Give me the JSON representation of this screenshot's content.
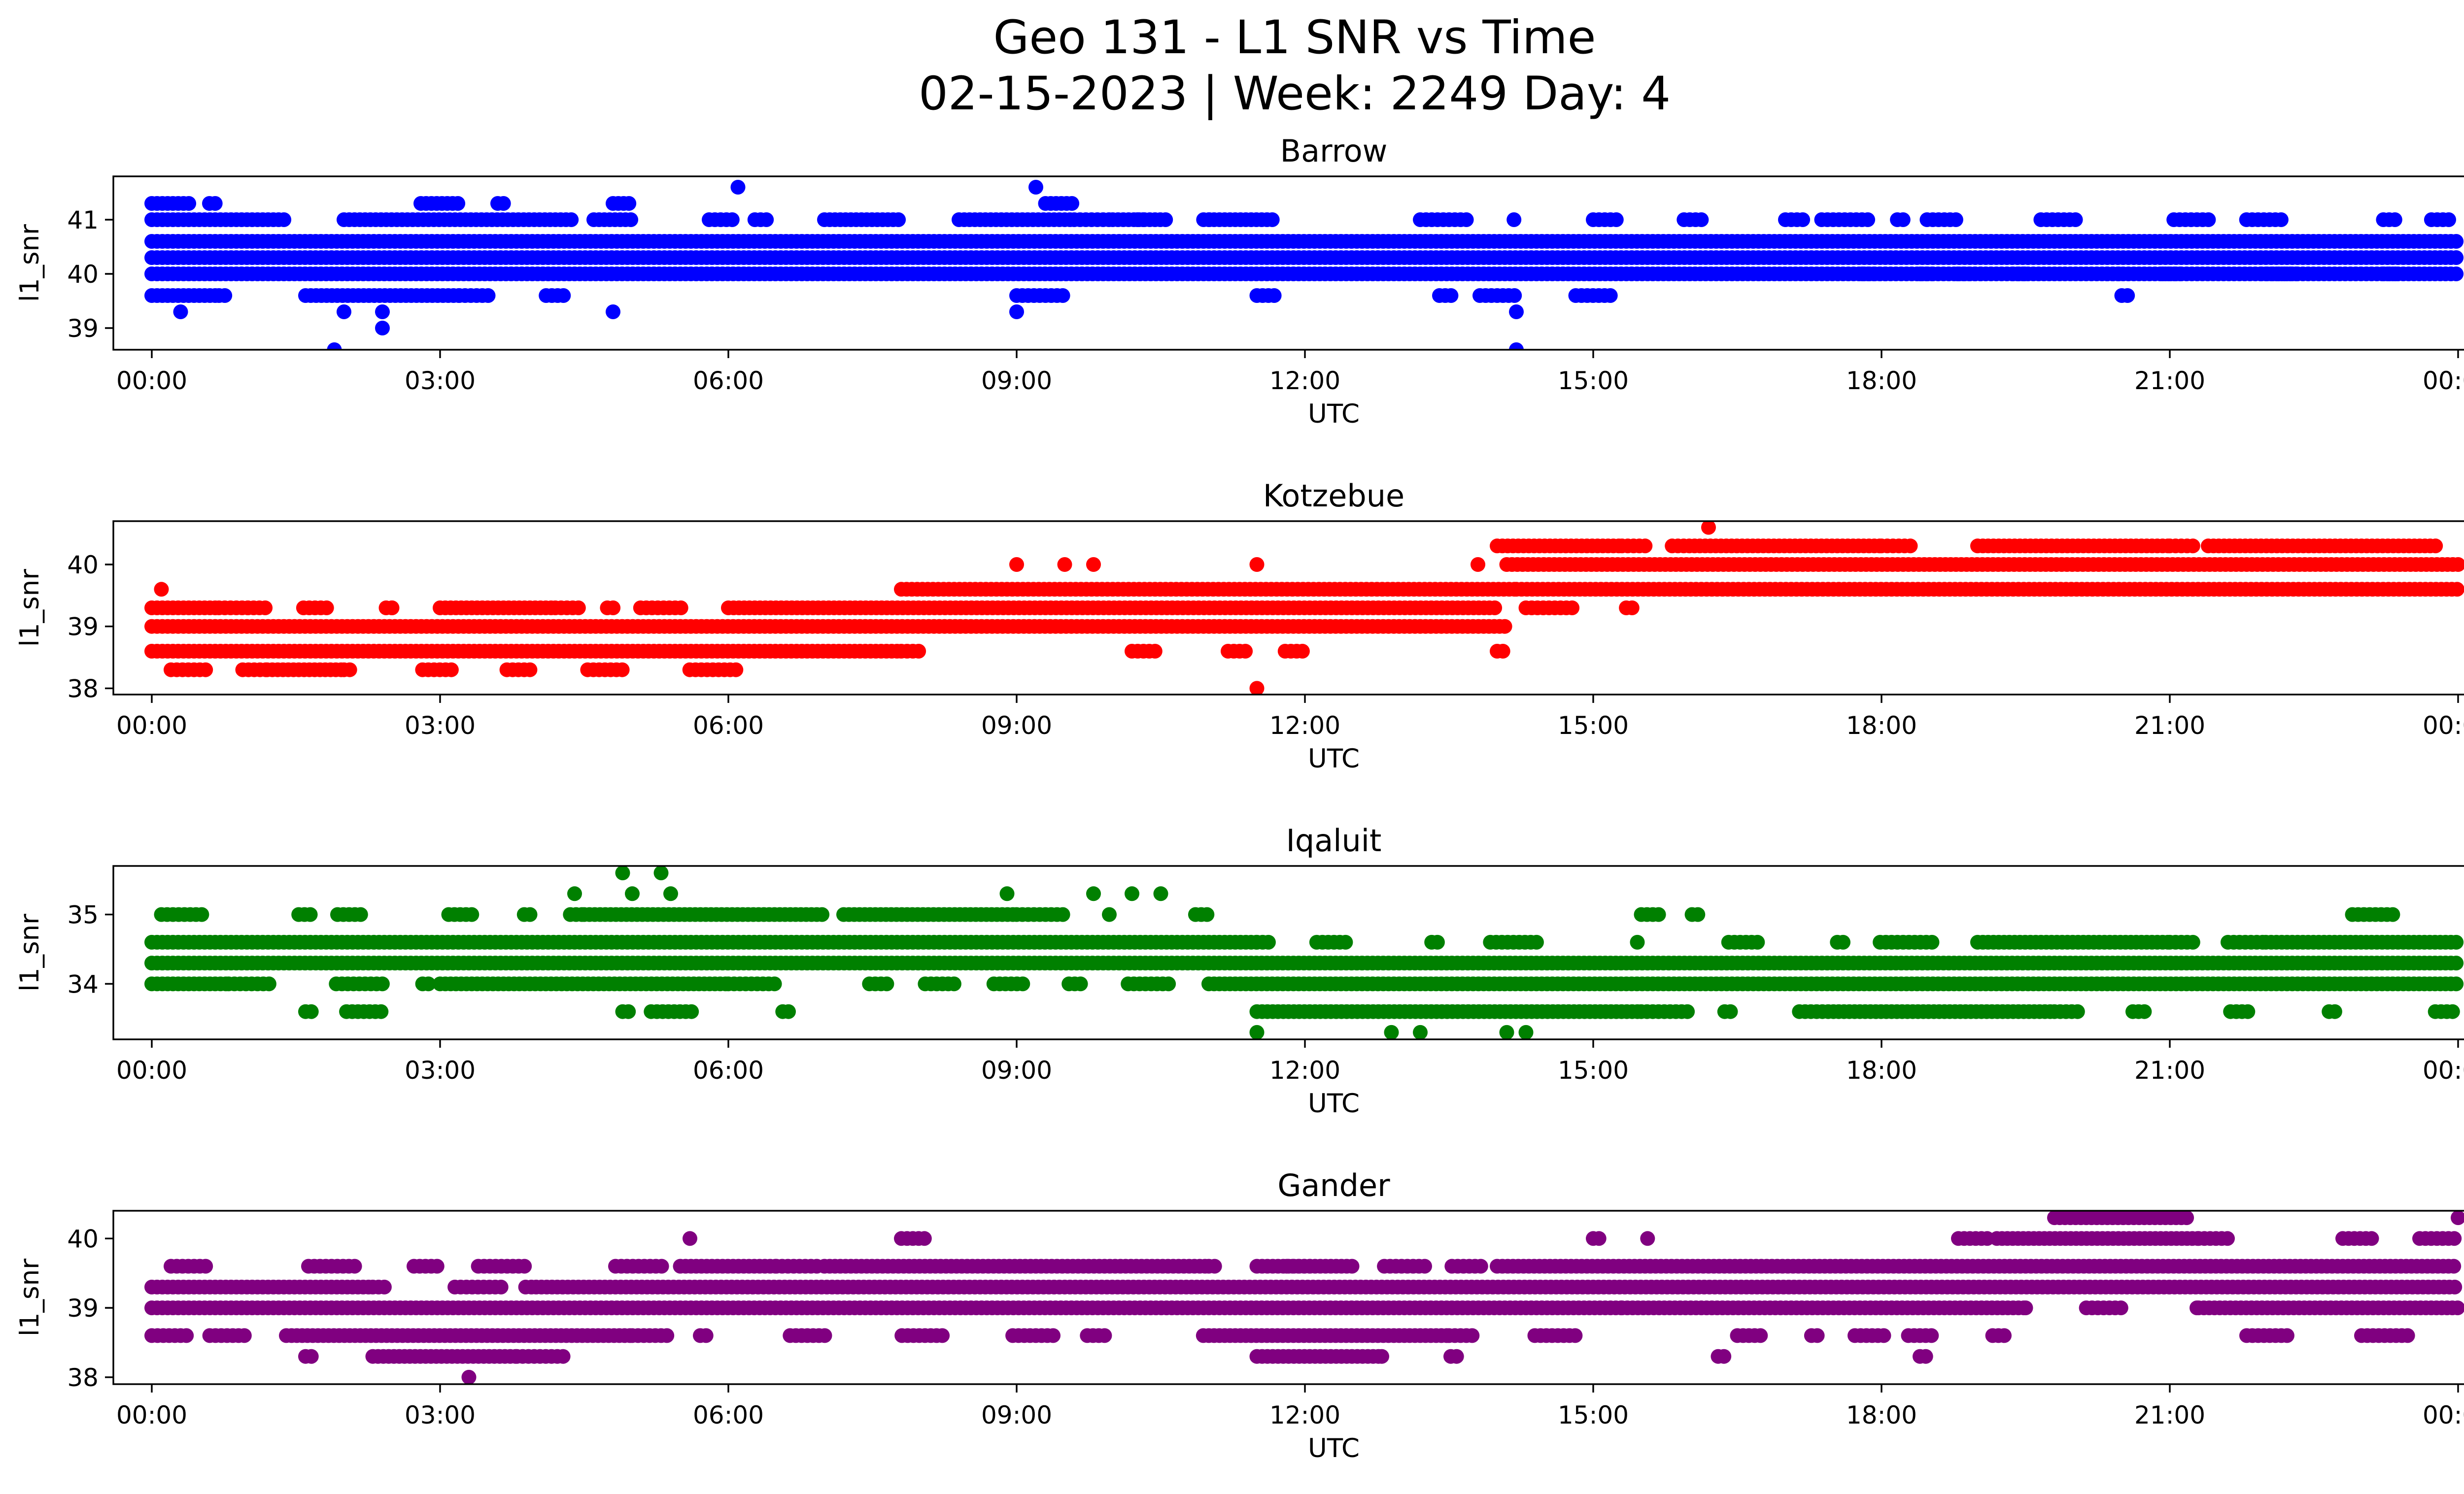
{
  "figure": {
    "title_line1": "Geo 131 - L1 SNR vs Time",
    "title_line2": "02-15-2023 | Week: 2249 Day: 4"
  },
  "chart_data": [
    {
      "type": "scatter",
      "title": "Barrow",
      "xlabel": "UTC",
      "ylabel": "l1_snr",
      "color": "#0000ff",
      "xlim_hours": [
        -0.4,
        25.0
      ],
      "ylim": [
        38.6,
        41.8
      ],
      "x_ticks": [
        0,
        3,
        6,
        9,
        12,
        15,
        18,
        21,
        24
      ],
      "x_tick_labels": [
        "00:00",
        "03:00",
        "06:00",
        "09:00",
        "12:00",
        "15:00",
        "18:00",
        "21:00",
        "00:00"
      ],
      "y_ticks": [
        39,
        40,
        41
      ],
      "y_tick_labels": [
        "39",
        "40",
        "41"
      ],
      "levels": [
        {
          "y": 40.6,
          "segments": [
            [
              0,
              24
            ]
          ]
        },
        {
          "y": 40.3,
          "segments": [
            [
              0,
              24
            ]
          ]
        },
        {
          "y": 40.0,
          "segments": [
            [
              0,
              24
            ]
          ],
          "sparse": [
            [
              17.8,
              24
            ]
          ]
        },
        {
          "y": 41.0,
          "segments": [
            [
              0,
              1.4
            ],
            [
              2.0,
              4.4
            ],
            [
              4.6,
              5.0
            ],
            [
              7.0,
              7.8
            ],
            [
              8.4,
              9.6
            ],
            [
              10.0,
              10.6
            ],
            [
              11.0,
              11.7
            ]
          ],
          "sparse": [
            [
              5.8,
              6.4
            ],
            [
              9.6,
              11.8
            ],
            [
              13.2,
              14.2
            ],
            [
              15.0,
              16.6
            ],
            [
              17.0,
              24
            ]
          ]
        },
        {
          "y": 39.6,
          "segments": [
            [
              0,
              0.7
            ],
            [
              1.6,
              3.2
            ]
          ],
          "sparse": [
            [
              0.7,
              1.5
            ],
            [
              3.2,
              4.8
            ],
            [
              9.0,
              9.8
            ],
            [
              11.5,
              11.7
            ],
            [
              13.4,
              15.5
            ],
            [
              20.5,
              20.6
            ]
          ]
        },
        {
          "y": 41.3,
          "segments": [
            [
              0,
              0.4
            ],
            [
              2.8,
              3.2
            ],
            [
              4.8,
              5.0
            ],
            [
              9.3,
              9.6
            ]
          ],
          "sparse": [
            [
              0.6,
              0.7
            ],
            [
              3.6,
              3.7
            ]
          ]
        }
      ],
      "points": [
        [
          1.9,
          38.6
        ],
        [
          14.2,
          38.6
        ],
        [
          6.1,
          41.6
        ],
        [
          9.2,
          41.6
        ],
        [
          0.3,
          39.3
        ],
        [
          2.0,
          39.3
        ],
        [
          2.4,
          39.3
        ],
        [
          4.8,
          39.3
        ],
        [
          9.0,
          39.3
        ],
        [
          14.2,
          39.3
        ],
        [
          2.4,
          39.0
        ]
      ]
    },
    {
      "type": "scatter",
      "title": "Kotzebue",
      "xlabel": "UTC",
      "ylabel": "l1_snr",
      "color": "#ff0000",
      "xlim_hours": [
        -0.4,
        25.0
      ],
      "ylim": [
        37.9,
        40.7
      ],
      "x_ticks": [
        0,
        3,
        6,
        9,
        12,
        15,
        18,
        21,
        24
      ],
      "x_tick_labels": [
        "00:00",
        "03:00",
        "06:00",
        "09:00",
        "12:00",
        "15:00",
        "18:00",
        "21:00",
        "00:00"
      ],
      "y_ticks": [
        38,
        39,
        40
      ],
      "y_tick_labels": [
        "38",
        "39",
        "40"
      ],
      "levels": [
        {
          "y": 39.0,
          "segments": [
            [
              0,
              14.1
            ]
          ]
        },
        {
          "y": 38.6,
          "segments": [
            [
              0,
              7.8
            ]
          ],
          "sparse": [
            [
              7.8,
              8.0
            ],
            [
              10.2,
              10.6
            ],
            [
              11.2,
              12.0
            ],
            [
              14.0,
              14.1
            ]
          ]
        },
        {
          "y": 39.3,
          "segments": [
            [
              0,
              0.7
            ],
            [
              3.0,
              4.2
            ],
            [
              6.0,
              14.0
            ]
          ],
          "sparse": [
            [
              0.7,
              3.0
            ],
            [
              4.2,
              6.0
            ],
            [
              14.3,
              15.6
            ]
          ]
        },
        {
          "y": 39.6,
          "segments": [
            [
              7.8,
              14.2
            ],
            [
              14.2,
              24
            ]
          ]
        },
        {
          "y": 40.0,
          "segments": [
            [
              14.1,
              24
            ]
          ]
        },
        {
          "y": 40.3,
          "segments": [
            [
              14.0,
              15.3
            ],
            [
              16.0,
              18.0
            ],
            [
              19.0,
              21.0
            ],
            [
              21.4,
              23.8
            ]
          ],
          "sparse": [
            [
              15.3,
              16.0
            ],
            [
              18.0,
              19.0
            ],
            [
              21.0,
              21.4
            ]
          ]
        },
        {
          "y": 38.3,
          "segments": [
            [
              1.2,
              2.0
            ]
          ],
          "sparse": [
            [
              0.2,
              1.2
            ],
            [
              2.0,
              6.2
            ]
          ]
        }
      ],
      "points": [
        [
          0.1,
          39.6
        ],
        [
          16.2,
          40.6
        ],
        [
          11.5,
          38.0
        ],
        [
          9.0,
          40.0
        ],
        [
          9.5,
          40.0
        ],
        [
          9.8,
          40.0
        ],
        [
          11.5,
          40.0
        ],
        [
          13.8,
          40.0
        ],
        [
          1.0,
          39.3
        ],
        [
          2.5,
          39.3
        ]
      ]
    },
    {
      "type": "scatter",
      "title": "Iqaluit",
      "xlabel": "UTC",
      "ylabel": "l1_snr",
      "color": "#008000",
      "xlim_hours": [
        -0.4,
        25.0
      ],
      "ylim": [
        33.2,
        35.7
      ],
      "x_ticks": [
        0,
        3,
        6,
        9,
        12,
        15,
        18,
        21,
        24
      ],
      "x_tick_labels": [
        "00:00",
        "03:00",
        "06:00",
        "09:00",
        "12:00",
        "15:00",
        "18:00",
        "21:00",
        "00:00"
      ],
      "y_ticks": [
        34,
        35
      ],
      "y_tick_labels": [
        "34",
        "35"
      ],
      "levels": [
        {
          "y": 34.3,
          "segments": [
            [
              0,
              24
            ]
          ]
        },
        {
          "y": 34.6,
          "segments": [
            [
              0,
              11.5
            ],
            [
              19.0,
              21.0
            ],
            [
              22.0,
              24.0
            ]
          ],
          "sparse": [
            [
              11.5,
              19.0
            ],
            [
              21.0,
              22.0
            ]
          ]
        },
        {
          "y": 34.0,
          "segments": [
            [
              0,
              0.8
            ],
            [
              3.0,
              6.0
            ],
            [
              11.0,
              24.0
            ]
          ],
          "sparse": [
            [
              0.8,
              3.0
            ],
            [
              6.0,
              11.0
            ]
          ]
        },
        {
          "y": 33.6,
          "segments": [
            [
              11.5,
              15.5
            ],
            [
              17.5,
              19.8
            ]
          ],
          "sparse": [
            [
              1.6,
              2.5
            ],
            [
              4.9,
              7.2
            ],
            [
              15.5,
              17.5
            ],
            [
              19.8,
              24
            ]
          ]
        },
        {
          "y": 35.0,
          "segments": [
            [
              4.5,
              7.0
            ],
            [
              7.2,
              9.0
            ]
          ],
          "sparse": [
            [
              0.1,
              4.5
            ],
            [
              9.0,
              11.2
            ],
            [
              15.5,
              16.1
            ],
            [
              22.9,
              23.4
            ]
          ]
        }
      ],
      "points": [
        [
          11.5,
          33.3
        ],
        [
          12.9,
          33.3
        ],
        [
          13.2,
          33.3
        ],
        [
          14.1,
          33.3
        ],
        [
          14.3,
          33.3
        ],
        [
          4.4,
          35.3
        ],
        [
          5.0,
          35.3
        ],
        [
          5.4,
          35.3
        ],
        [
          8.9,
          35.3
        ],
        [
          9.8,
          35.3
        ],
        [
          10.2,
          35.3
        ],
        [
          10.5,
          35.3
        ],
        [
          4.9,
          35.6
        ],
        [
          5.3,
          35.6
        ]
      ]
    },
    {
      "type": "scatter",
      "title": "Gander",
      "xlabel": "UTC",
      "ylabel": "l1_snr",
      "color": "#800080",
      "xlim_hours": [
        -0.4,
        25.0
      ],
      "ylim": [
        37.9,
        40.4
      ],
      "x_ticks": [
        0,
        3,
        6,
        9,
        12,
        15,
        18,
        21,
        24
      ],
      "x_tick_labels": [
        "00:00",
        "03:00",
        "06:00",
        "09:00",
        "12:00",
        "15:00",
        "18:00",
        "21:00",
        "00:00"
      ],
      "y_ticks": [
        38,
        39,
        40
      ],
      "y_tick_labels": [
        "38",
        "39",
        "40"
      ],
      "levels": [
        {
          "y": 39.0,
          "segments": [
            [
              0,
              15.3
            ],
            [
              15.3,
              19.5
            ],
            [
              21.3,
              24.0
            ]
          ],
          "sparse": [
            [
              19.5,
              21.3
            ]
          ]
        },
        {
          "y": 39.3,
          "segments": [
            [
              0,
              2.3
            ],
            [
              4.0,
              24.0
            ]
          ],
          "sparse": [
            [
              2.3,
              4.0
            ]
          ]
        },
        {
          "y": 39.6,
          "segments": [
            [
              5.5,
              6.5
            ],
            [
              7.0,
              11.0
            ],
            [
              11.5,
              12.5
            ],
            [
              14.0,
              24.0
            ]
          ],
          "sparse": [
            [
              0.2,
              5.5
            ],
            [
              6.5,
              7.0
            ],
            [
              11.0,
              14.0
            ]
          ]
        },
        {
          "y": 38.6,
          "segments": [
            [
              1.4,
              5.0
            ],
            [
              11.0,
              13.5
            ]
          ],
          "sparse": [
            [
              0,
              1.4
            ],
            [
              5.0,
              11.0
            ],
            [
              13.5,
              15.0
            ],
            [
              16.5,
              19.5
            ],
            [
              21.8,
              23.6
            ]
          ]
        },
        {
          "y": 38.3,
          "segments": [
            [
              2.3,
              3.8
            ],
            [
              11.5,
              12.8
            ]
          ],
          "sparse": [
            [
              1.6,
              2.3
            ],
            [
              3.8,
              5.0
            ],
            [
              12.8,
              14.0
            ],
            [
              16.3,
              16.4
            ],
            [
              18.4,
              18.5
            ]
          ]
        },
        {
          "y": 40.0,
          "segments": [
            [
              19.2,
              21.3
            ]
          ],
          "sparse": [
            [
              5.6,
              5.6
            ],
            [
              7.8,
              8.4
            ],
            [
              15.0,
              15.6
            ],
            [
              18.8,
              19.2
            ],
            [
              21.3,
              21.6
            ],
            [
              22.8,
              23.2
            ],
            [
              23.6,
              24.0
            ]
          ]
        },
        {
          "y": 40.3,
          "segments": [
            [
              19.8,
              21.2
            ]
          ],
          "sparse": [
            [
              24.0,
              24.0
            ]
          ]
        }
      ],
      "points": [
        [
          3.3,
          38.0
        ]
      ]
    }
  ]
}
